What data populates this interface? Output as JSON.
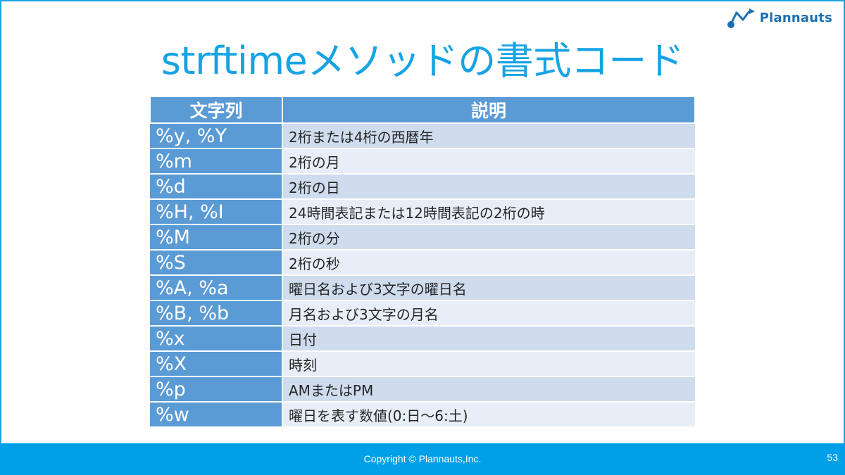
{
  "brand": {
    "name": "Plannauts",
    "icon": "plannauts-logo-icon",
    "color": "#1b6fb3"
  },
  "slide": {
    "title": "strftimeメソッドの書式コード",
    "title_color": "#17a3e3"
  },
  "table": {
    "headers": [
      "文字列",
      "説明"
    ],
    "header_color": "#5b9bd5",
    "rows": [
      {
        "code": "%y, %Y",
        "desc": "2桁または4桁の西暦年"
      },
      {
        "code": "%m",
        "desc": "2桁の月"
      },
      {
        "code": "%d",
        "desc": "2桁の日"
      },
      {
        "code": "%H, %I",
        "desc": "24時間表記または12時間表記の2桁の時"
      },
      {
        "code": "%M",
        "desc": "2桁の分"
      },
      {
        "code": "%S",
        "desc": "2桁の秒"
      },
      {
        "code": "%A, %a",
        "desc": "曜日名および3文字の曜日名"
      },
      {
        "code": "%B, %b",
        "desc": "月名および3文字の月名"
      },
      {
        "code": "%x",
        "desc": "日付"
      },
      {
        "code": "%X",
        "desc": "時刻"
      },
      {
        "code": "%p",
        "desc": "AMまたはPM"
      },
      {
        "code": "%w",
        "desc": "曜日を表す数値(0:日～6:土)"
      }
    ]
  },
  "footer": {
    "copyright": "Copyright © Plannauts,Inc.",
    "page_number": "53",
    "color": "#00a0e9"
  }
}
